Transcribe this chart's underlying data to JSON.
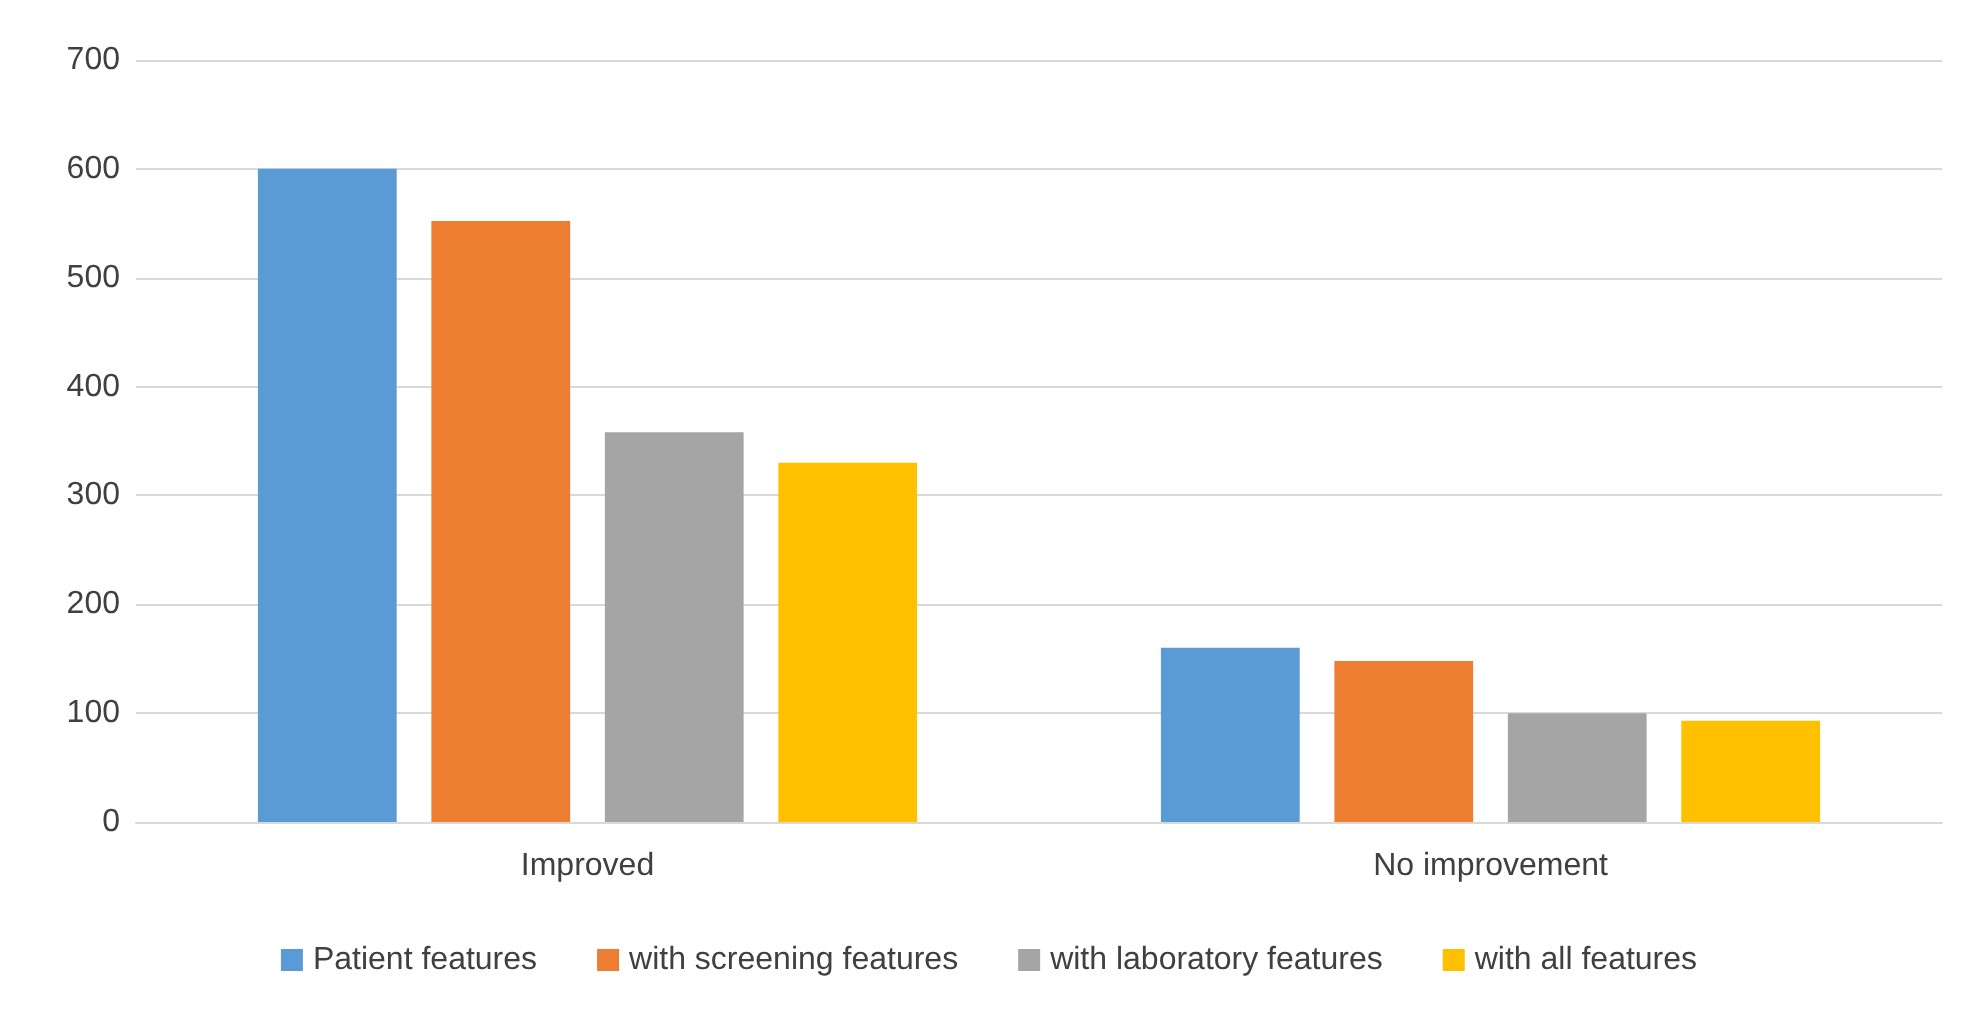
{
  "chart_data": {
    "type": "bar",
    "categories": [
      "Improved",
      "No improvement"
    ],
    "series": [
      {
        "name": "Patient features",
        "color": "#5b9bd5",
        "values": [
          600,
          160
        ]
      },
      {
        "name": "with screening features",
        "color": "#ed7d31",
        "values": [
          552,
          148
        ]
      },
      {
        "name": "with laboratory features",
        "color": "#a5a5a5",
        "values": [
          358,
          100
        ]
      },
      {
        "name": "with all features",
        "color": "#ffc000",
        "values": [
          330,
          93
        ]
      }
    ],
    "ylim": [
      0,
      700
    ],
    "yticks": [
      0,
      100,
      200,
      300,
      400,
      500,
      600,
      700
    ],
    "grid": "y",
    "legend": "bottom"
  }
}
